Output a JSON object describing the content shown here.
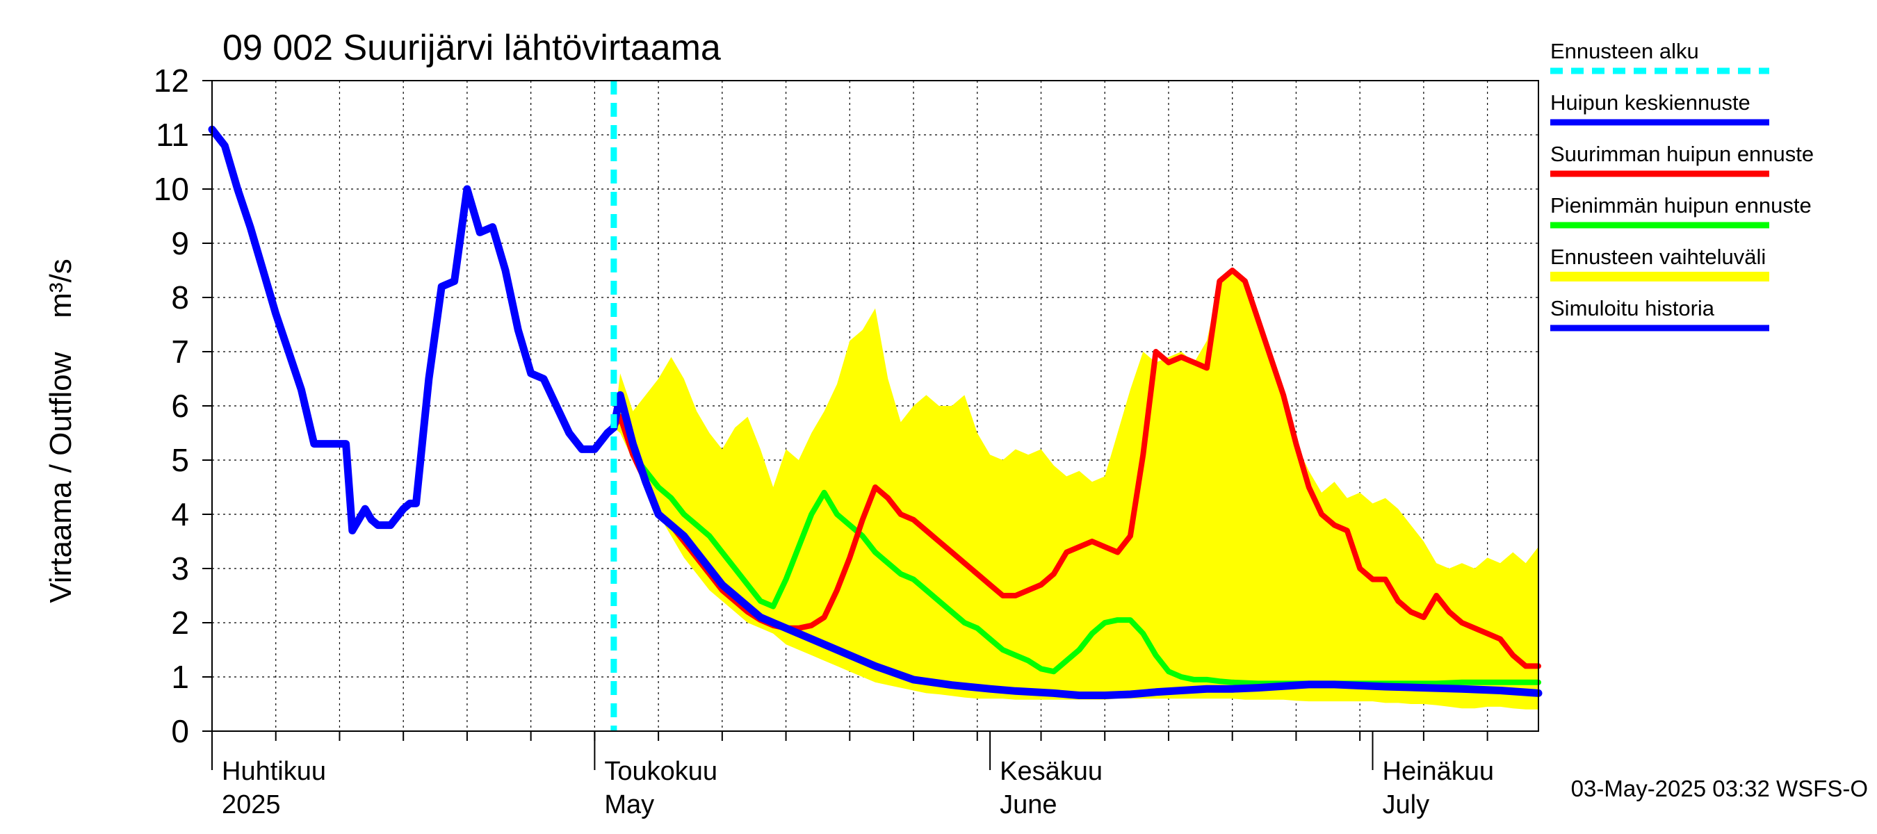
{
  "chart_data": {
    "type": "line",
    "title": "09 002 Suurijärvi lähtövirtaama",
    "ylabel": "Virtaama / Outflow    m³/s",
    "ylim": [
      0,
      12
    ],
    "yticks": [
      "0",
      "1",
      "2",
      "3",
      "4",
      "5",
      "6",
      "7",
      "8",
      "9",
      "10",
      "11",
      "12"
    ],
    "xlim": [
      0,
      104
    ],
    "month_labels": [
      {
        "day": 0,
        "fi": "Huhtikuu",
        "en": "2025"
      },
      {
        "day": 30,
        "fi": "Toukokuu",
        "en": "May"
      },
      {
        "day": 61,
        "fi": "Kesäkuu",
        "en": "June"
      },
      {
        "day": 91,
        "fi": "Heinäkuu",
        "en": "July"
      }
    ],
    "forecast_start_day": 31.5,
    "legend": [
      {
        "key": "forecast_start",
        "label": "Ennusteen alku",
        "color": "#00ffff",
        "style": "dashed"
      },
      {
        "key": "mean",
        "label": "Huipun keskiennuste",
        "color": "#0000ff",
        "style": "solid"
      },
      {
        "key": "max",
        "label": "Suurimman huipun ennuste",
        "color": "#ff0000",
        "style": "solid"
      },
      {
        "key": "min",
        "label": "Pienimmän huipun ennuste",
        "color": "#00ff00",
        "style": "solid"
      },
      {
        "key": "range",
        "label": "Ennusteen vaihteluväli",
        "color": "#ffff00",
        "style": "band"
      },
      {
        "key": "history",
        "label": "Simuloitu historia",
        "color": "#0000ff",
        "style": "solid"
      }
    ],
    "series": [
      {
        "name": "Simuloitu historia",
        "color": "#0000ff",
        "x": [
          0,
          1,
          2,
          3,
          4,
          5,
          6,
          7,
          8,
          8.5,
          9,
          10,
          10.5,
          11,
          12,
          12.5,
          13,
          14,
          15,
          15.5,
          16,
          17,
          18,
          19,
          20,
          21,
          22,
          23,
          24,
          25,
          26,
          27,
          28,
          29,
          30,
          31,
          31.5
        ],
        "y": [
          11.1,
          10.8,
          10.0,
          9.3,
          8.5,
          7.7,
          7.0,
          6.3,
          5.3,
          5.3,
          5.3,
          5.3,
          5.3,
          3.7,
          4.1,
          3.9,
          3.8,
          3.8,
          4.1,
          4.2,
          4.2,
          6.5,
          8.2,
          8.3,
          10.0,
          9.2,
          9.3,
          8.5,
          7.4,
          6.6,
          6.5,
          6.0,
          5.5,
          5.2,
          5.2,
          5.5,
          5.6
        ]
      },
      {
        "name": "Huipun keskiennuste",
        "color": "#0000ff",
        "x": [
          31.5,
          32,
          33,
          34,
          35,
          36,
          37,
          38,
          39,
          40,
          41,
          42,
          43,
          44,
          45,
          46,
          48,
          50,
          52,
          55,
          58,
          61,
          63,
          66,
          68,
          70,
          72,
          74,
          76,
          78,
          80,
          82,
          84,
          86,
          88,
          90,
          92,
          95,
          98,
          101,
          104
        ],
        "y": [
          5.6,
          6.2,
          5.3,
          4.6,
          4.0,
          3.8,
          3.6,
          3.3,
          3.0,
          2.7,
          2.5,
          2.3,
          2.1,
          2.0,
          1.9,
          1.8,
          1.6,
          1.4,
          1.2,
          0.95,
          0.85,
          0.78,
          0.74,
          0.7,
          0.66,
          0.66,
          0.68,
          0.72,
          0.75,
          0.78,
          0.78,
          0.8,
          0.83,
          0.86,
          0.86,
          0.84,
          0.82,
          0.8,
          0.78,
          0.75,
          0.7
        ]
      },
      {
        "name": "Suurimman huipun ennuste",
        "color": "#ff0000",
        "x": [
          31.5,
          32,
          33,
          34,
          35,
          36,
          37,
          38,
          39,
          40,
          41,
          42,
          43,
          44,
          45,
          46,
          47,
          48,
          49,
          50,
          51,
          52,
          53,
          54,
          55,
          56,
          57,
          58,
          59,
          60,
          61,
          62,
          63,
          64,
          65,
          66,
          67,
          68,
          69,
          70,
          71,
          72,
          73,
          74,
          75,
          76,
          77,
          78,
          79,
          80,
          81,
          82,
          83,
          84,
          85,
          86,
          87,
          88,
          89,
          90,
          91,
          92,
          93,
          94,
          95,
          96,
          97,
          98,
          99,
          100,
          101,
          102,
          103,
          104
        ],
        "y": [
          5.6,
          5.8,
          5.1,
          4.6,
          4.0,
          3.8,
          3.5,
          3.2,
          2.9,
          2.6,
          2.4,
          2.2,
          2.05,
          1.95,
          1.9,
          1.9,
          1.95,
          2.1,
          2.6,
          3.2,
          3.9,
          4.5,
          4.3,
          4.0,
          3.9,
          3.7,
          3.5,
          3.3,
          3.1,
          2.9,
          2.7,
          2.5,
          2.5,
          2.6,
          2.7,
          2.9,
          3.3,
          3.4,
          3.5,
          3.4,
          3.3,
          3.6,
          5.1,
          7.0,
          6.8,
          6.9,
          6.8,
          6.7,
          8.3,
          8.5,
          8.3,
          7.6,
          6.9,
          6.2,
          5.3,
          4.5,
          4.0,
          3.8,
          3.7,
          3.0,
          2.8,
          2.8,
          2.4,
          2.2,
          2.1,
          2.5,
          2.2,
          2.0,
          1.9,
          1.8,
          1.7,
          1.4,
          1.2,
          1.2
        ]
      },
      {
        "name": "Pienimmän huipun ennuste",
        "color": "#00ff00",
        "x": [
          31.5,
          32,
          33,
          34,
          35,
          36,
          37,
          38,
          39,
          40,
          41,
          42,
          43,
          44,
          45,
          46,
          47,
          48,
          49,
          50,
          51,
          52,
          53,
          54,
          55,
          56,
          57,
          58,
          59,
          60,
          61,
          62,
          63,
          64,
          65,
          66,
          67,
          68,
          69,
          70,
          71,
          72,
          73,
          74,
          75,
          76,
          77,
          78,
          79,
          80,
          82,
          84,
          86,
          88,
          90,
          92,
          94,
          96,
          98,
          100,
          102,
          104
        ],
        "y": [
          5.6,
          5.8,
          5.1,
          4.8,
          4.5,
          4.3,
          4.0,
          3.8,
          3.6,
          3.3,
          3.0,
          2.7,
          2.4,
          2.3,
          2.8,
          3.4,
          4.0,
          4.4,
          4.0,
          3.8,
          3.6,
          3.3,
          3.1,
          2.9,
          2.8,
          2.6,
          2.4,
          2.2,
          2.0,
          1.9,
          1.7,
          1.5,
          1.4,
          1.3,
          1.15,
          1.1,
          1.3,
          1.5,
          1.8,
          2.0,
          2.05,
          2.05,
          1.8,
          1.4,
          1.1,
          1.0,
          0.95,
          0.95,
          0.92,
          0.9,
          0.88,
          0.88,
          0.88,
          0.88,
          0.88,
          0.88,
          0.88,
          0.88,
          0.9,
          0.9,
          0.9,
          0.9
        ]
      }
    ],
    "band": {
      "name": "Ennusteen vaihteluväli",
      "color": "#ffff00",
      "x": [
        31.5,
        32,
        33,
        34,
        35,
        36,
        37,
        38,
        39,
        40,
        41,
        42,
        43,
        44,
        45,
        46,
        47,
        48,
        49,
        50,
        51,
        52,
        53,
        54,
        55,
        56,
        57,
        58,
        59,
        60,
        61,
        62,
        63,
        64,
        65,
        66,
        67,
        68,
        69,
        70,
        71,
        72,
        73,
        74,
        75,
        76,
        77,
        78,
        79,
        80,
        81,
        82,
        83,
        84,
        85,
        86,
        87,
        88,
        89,
        90,
        91,
        92,
        93,
        94,
        95,
        96,
        97,
        98,
        99,
        100,
        101,
        102,
        103,
        104
      ],
      "upper": [
        5.6,
        6.6,
        5.9,
        6.2,
        6.5,
        6.9,
        6.5,
        5.9,
        5.5,
        5.2,
        5.6,
        5.8,
        5.2,
        4.5,
        5.2,
        5.0,
        5.5,
        5.9,
        6.4,
        7.2,
        7.4,
        7.8,
        6.5,
        5.7,
        6.0,
        6.2,
        6.0,
        6.0,
        6.2,
        5.5,
        5.1,
        5.0,
        5.2,
        5.1,
        5.2,
        4.9,
        4.7,
        4.8,
        4.6,
        4.7,
        5.5,
        6.3,
        7.0,
        6.8,
        6.9,
        7.0,
        6.8,
        7.2,
        8.3,
        8.5,
        8.3,
        7.6,
        6.9,
        6.2,
        5.3,
        4.8,
        4.4,
        4.6,
        4.3,
        4.4,
        4.2,
        4.3,
        4.1,
        3.8,
        3.5,
        3.1,
        3.0,
        3.1,
        3.0,
        3.2,
        3.1,
        3.3,
        3.1,
        3.4
      ],
      "lower": [
        5.6,
        5.5,
        5.0,
        4.5,
        4.0,
        3.6,
        3.2,
        2.9,
        2.6,
        2.4,
        2.2,
        2.0,
        1.9,
        1.8,
        1.6,
        1.5,
        1.4,
        1.3,
        1.2,
        1.1,
        1.0,
        0.9,
        0.85,
        0.8,
        0.75,
        0.7,
        0.68,
        0.65,
        0.62,
        0.6,
        0.6,
        0.6,
        0.58,
        0.58,
        0.58,
        0.58,
        0.58,
        0.58,
        0.58,
        0.58,
        0.6,
        0.6,
        0.6,
        0.6,
        0.6,
        0.6,
        0.6,
        0.6,
        0.6,
        0.6,
        0.58,
        0.58,
        0.58,
        0.58,
        0.56,
        0.55,
        0.55,
        0.55,
        0.55,
        0.55,
        0.55,
        0.52,
        0.52,
        0.5,
        0.5,
        0.48,
        0.45,
        0.42,
        0.42,
        0.45,
        0.45,
        0.42,
        0.4,
        0.4
      ]
    }
  },
  "footer": {
    "timestamp": "03-May-2025 03:32 WSFS-O"
  }
}
